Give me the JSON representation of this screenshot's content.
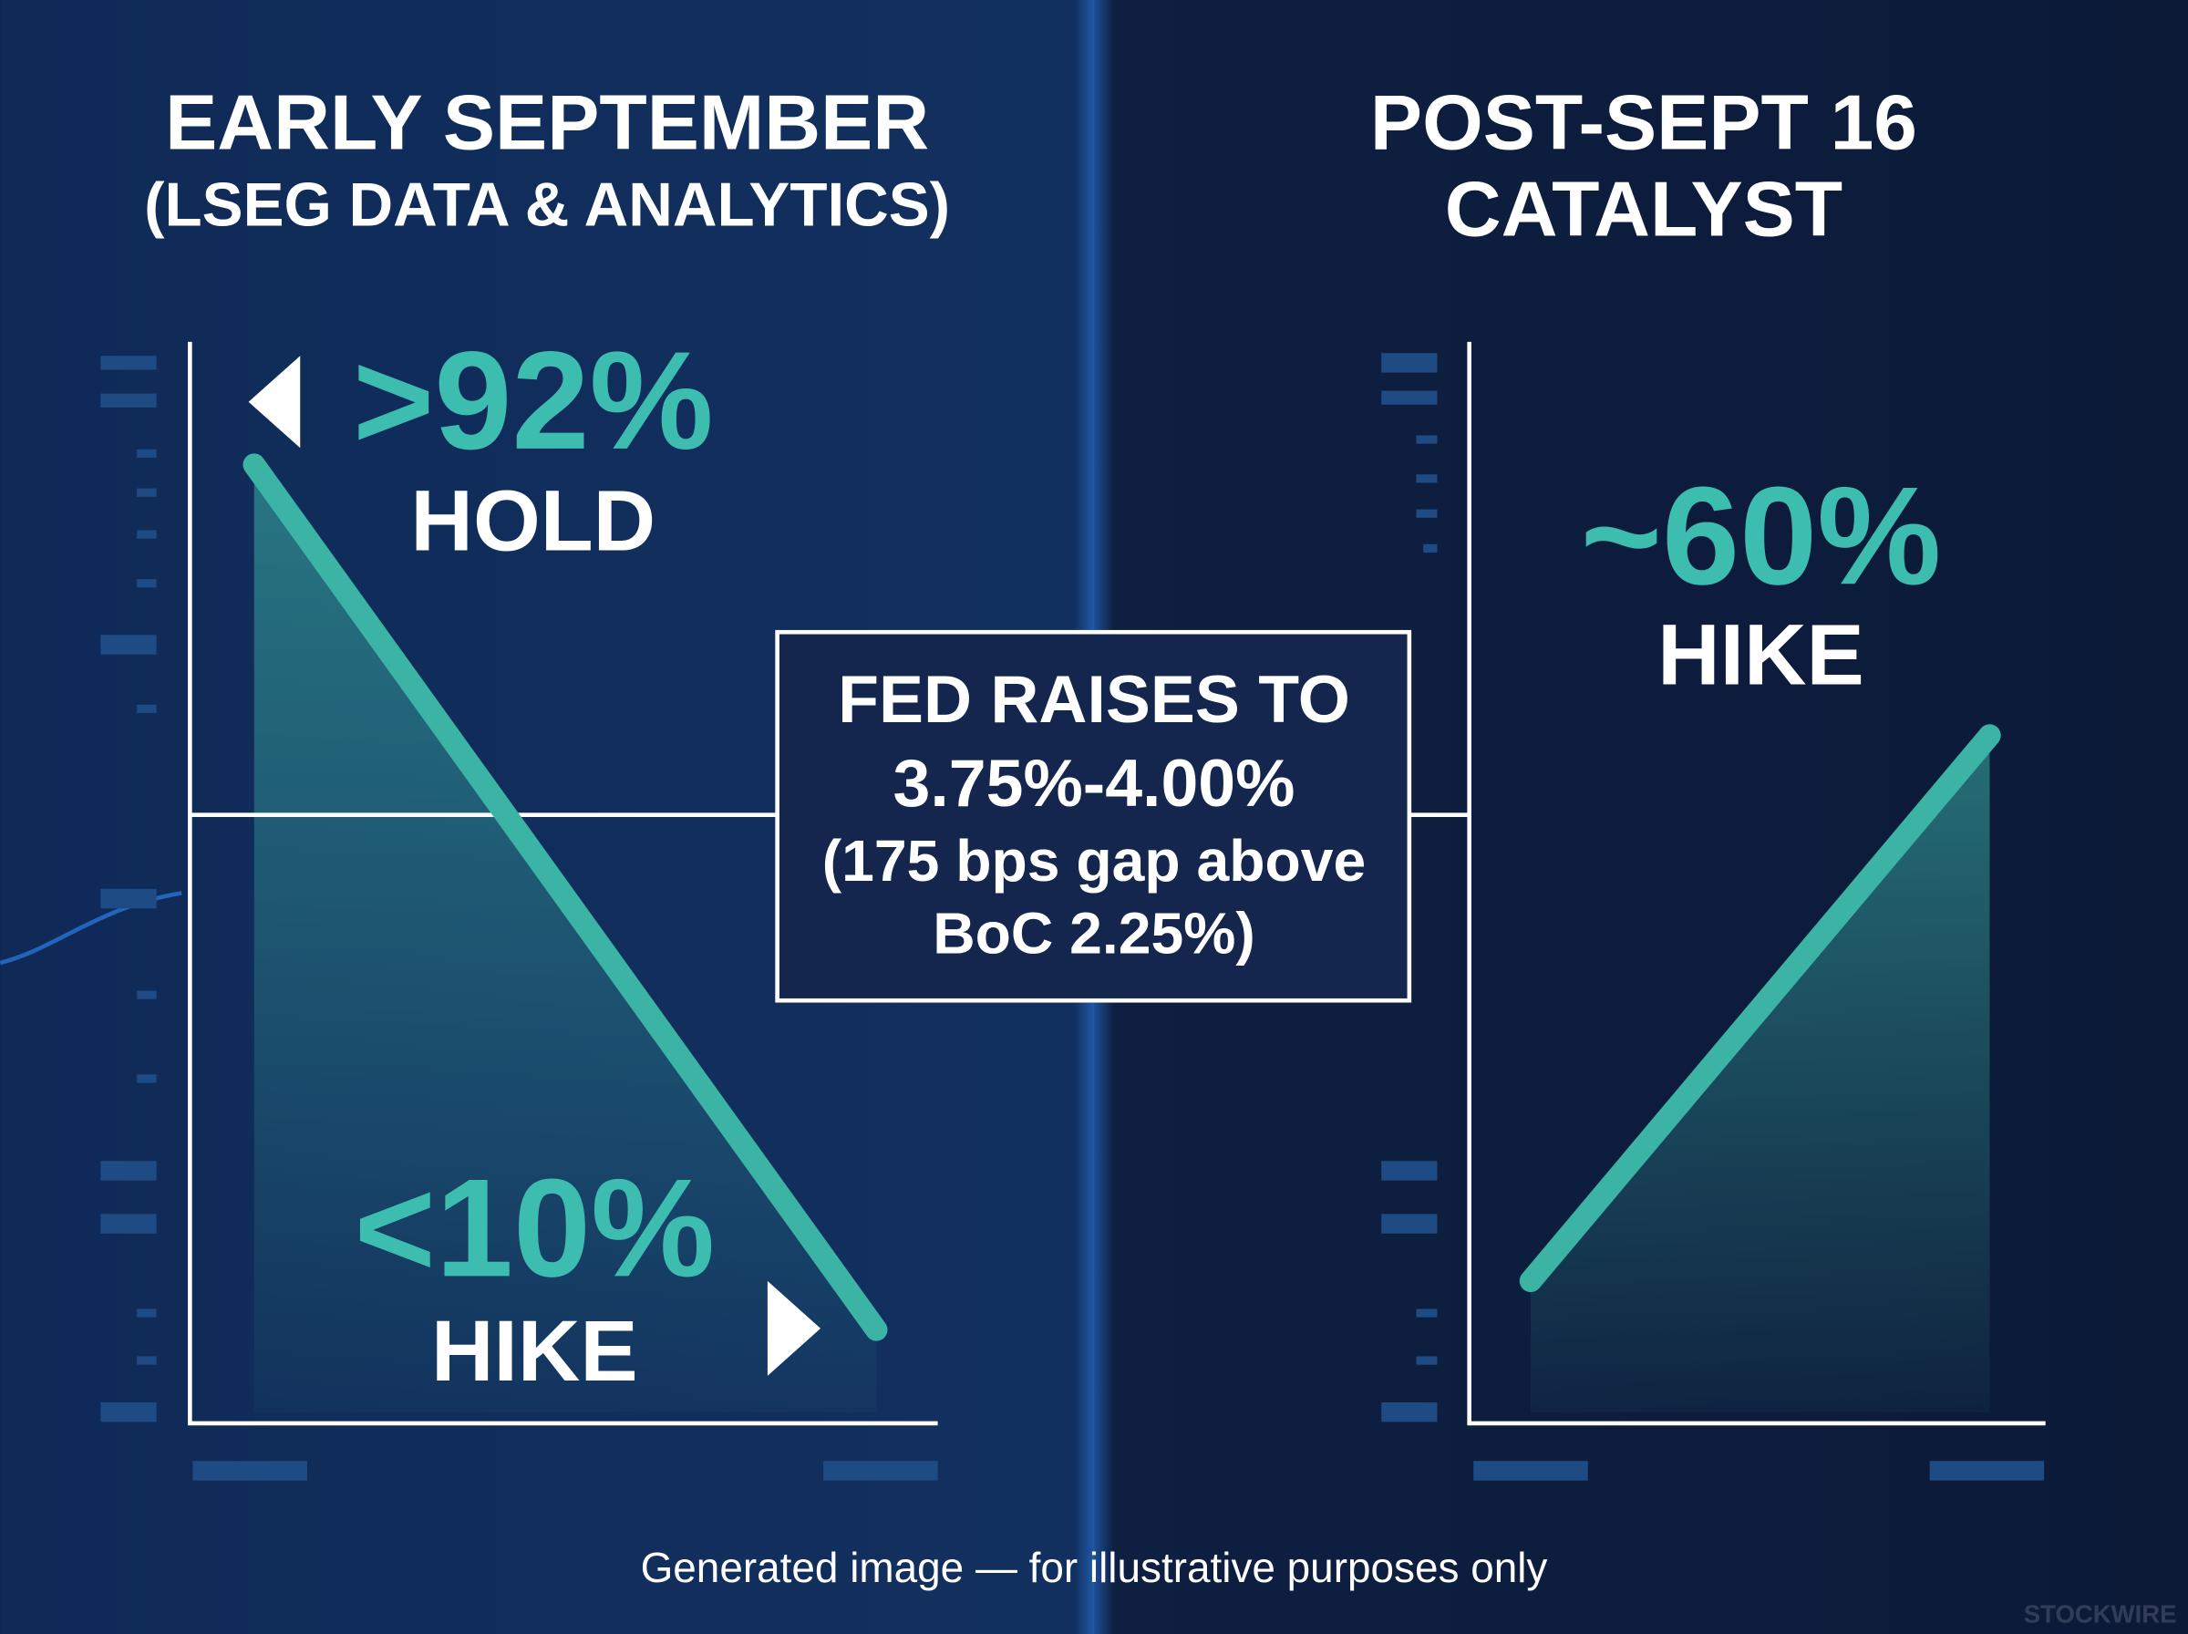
{
  "left_panel": {
    "title": [
      "EARLY SEPTEMBER",
      "(LSEG DATA & ANALYTICS)"
    ],
    "top_stat": {
      "value": ">92%",
      "label": "HOLD"
    },
    "bottom_stat": {
      "value": "<10%",
      "label": "HIKE"
    }
  },
  "right_panel": {
    "title": [
      "POST-SEPT 16",
      "CATALYST"
    ],
    "stat": {
      "value": "~60%",
      "label": "HIKE"
    }
  },
  "callout": [
    "FED RAISES TO",
    "3.75%-4.00%",
    "(175 bps gap above",
    "BoC 2.25%)"
  ],
  "footer": "Generated image — for illustrative purposes only",
  "watermark": "STOCKWIRE"
}
